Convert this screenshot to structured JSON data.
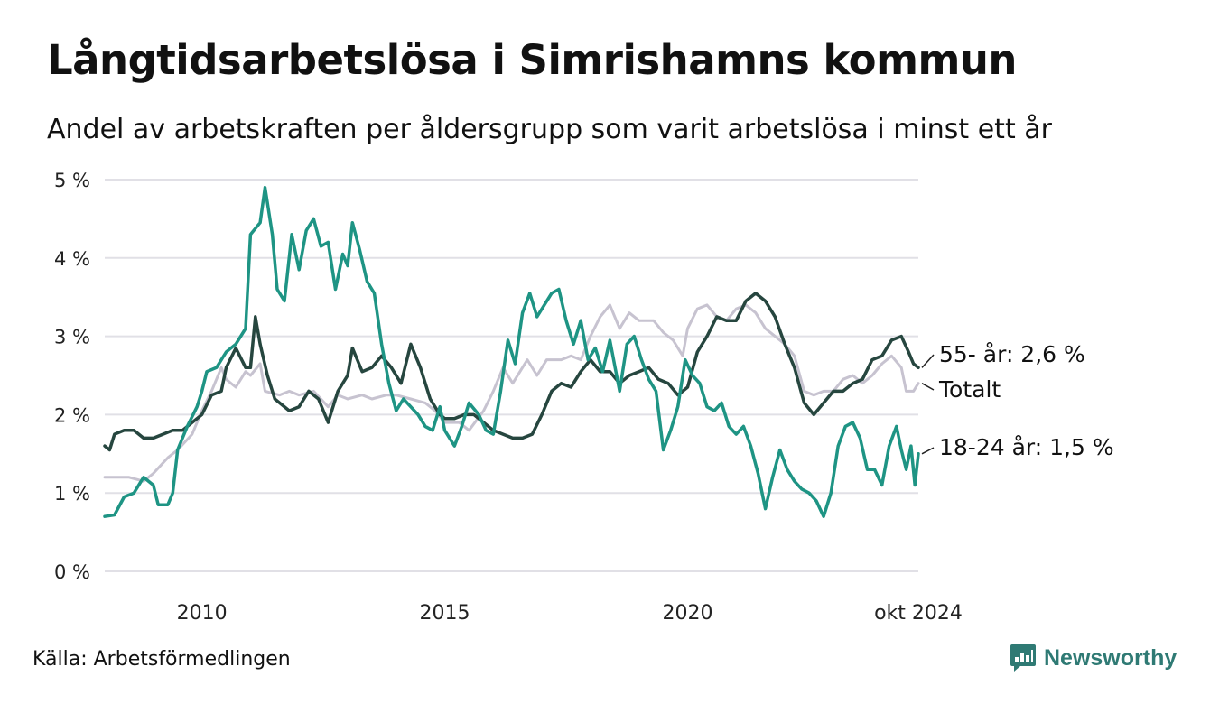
{
  "header": {
    "title": "Långtidsarbetslösa i Simrishamns kommun",
    "subtitle": "Andel av arbetskraften per åldersgrupp som varit arbetslösa i minst ett år"
  },
  "footer": {
    "source": "Källa: Arbetsförmedlingen",
    "brand": "Newsworthy"
  },
  "colors": {
    "youth": "#1e9484",
    "senior": "#26463f",
    "total": "#c7c3d0",
    "grid": "#e1e0e6",
    "brand": "#2f7a74"
  },
  "chart_data": {
    "type": "line",
    "title": "Långtidsarbetslösa i Simrishamns kommun",
    "subtitle": "Andel av arbetskraften per åldersgrupp som varit arbetslösa i minst ett år",
    "x_ticks": [
      {
        "x": 2010,
        "label": "2010"
      },
      {
        "x": 2015,
        "label": "2015"
      },
      {
        "x": 2020,
        "label": "2020"
      },
      {
        "x": 2024.75,
        "label": "okt 2024"
      }
    ],
    "y_ticks": [
      {
        "y": 0,
        "label": "0 %"
      },
      {
        "y": 1,
        "label": "1 %"
      },
      {
        "y": 2,
        "label": "2 %"
      },
      {
        "y": 3,
        "label": "3 %"
      },
      {
        "y": 4,
        "label": "4 %"
      },
      {
        "y": 5,
        "label": "5 %"
      }
    ],
    "xlim": [
      2008.0,
      2024.75
    ],
    "ylim": [
      0,
      5
    ],
    "grid": true,
    "series": [
      {
        "name": "Totalt",
        "end_label": "Totalt",
        "color": "#c7c3d0",
        "points": [
          [
            2008.0,
            1.2
          ],
          [
            2008.5,
            1.2
          ],
          [
            2008.8,
            1.15
          ],
          [
            2009.0,
            1.25
          ],
          [
            2009.3,
            1.45
          ],
          [
            2009.5,
            1.55
          ],
          [
            2009.8,
            1.75
          ],
          [
            2010.0,
            2.05
          ],
          [
            2010.2,
            2.3
          ],
          [
            2010.4,
            2.6
          ],
          [
            2010.5,
            2.45
          ],
          [
            2010.7,
            2.35
          ],
          [
            2010.9,
            2.55
          ],
          [
            2011.0,
            2.5
          ],
          [
            2011.2,
            2.65
          ],
          [
            2011.3,
            2.3
          ],
          [
            2011.6,
            2.25
          ],
          [
            2011.8,
            2.3
          ],
          [
            2012.0,
            2.25
          ],
          [
            2012.3,
            2.3
          ],
          [
            2012.6,
            2.1
          ],
          [
            2012.8,
            2.25
          ],
          [
            2013.0,
            2.2
          ],
          [
            2013.3,
            2.25
          ],
          [
            2013.5,
            2.2
          ],
          [
            2013.8,
            2.25
          ],
          [
            2014.0,
            2.25
          ],
          [
            2014.3,
            2.2
          ],
          [
            2014.6,
            2.15
          ],
          [
            2014.8,
            2.05
          ],
          [
            2015.0,
            1.9
          ],
          [
            2015.3,
            1.9
          ],
          [
            2015.5,
            1.8
          ],
          [
            2015.8,
            2.05
          ],
          [
            2016.0,
            2.3
          ],
          [
            2016.2,
            2.6
          ],
          [
            2016.4,
            2.4
          ],
          [
            2016.7,
            2.7
          ],
          [
            2016.9,
            2.5
          ],
          [
            2017.1,
            2.7
          ],
          [
            2017.4,
            2.7
          ],
          [
            2017.6,
            2.75
          ],
          [
            2017.8,
            2.7
          ],
          [
            2018.0,
            3.0
          ],
          [
            2018.2,
            3.25
          ],
          [
            2018.4,
            3.4
          ],
          [
            2018.6,
            3.1
          ],
          [
            2018.8,
            3.3
          ],
          [
            2019.0,
            3.2
          ],
          [
            2019.3,
            3.2
          ],
          [
            2019.5,
            3.05
          ],
          [
            2019.7,
            2.95
          ],
          [
            2019.9,
            2.75
          ],
          [
            2020.0,
            3.1
          ],
          [
            2020.2,
            3.35
          ],
          [
            2020.4,
            3.4
          ],
          [
            2020.6,
            3.25
          ],
          [
            2020.8,
            3.2
          ],
          [
            2021.0,
            3.35
          ],
          [
            2021.2,
            3.4
          ],
          [
            2021.4,
            3.3
          ],
          [
            2021.6,
            3.1
          ],
          [
            2021.8,
            3.0
          ],
          [
            2022.0,
            2.9
          ],
          [
            2022.2,
            2.75
          ],
          [
            2022.4,
            2.3
          ],
          [
            2022.6,
            2.25
          ],
          [
            2022.8,
            2.3
          ],
          [
            2023.0,
            2.3
          ],
          [
            2023.2,
            2.45
          ],
          [
            2023.4,
            2.5
          ],
          [
            2023.6,
            2.4
          ],
          [
            2023.8,
            2.5
          ],
          [
            2024.0,
            2.65
          ],
          [
            2024.2,
            2.75
          ],
          [
            2024.4,
            2.6
          ],
          [
            2024.5,
            2.3
          ],
          [
            2024.65,
            2.3
          ],
          [
            2024.75,
            2.4
          ]
        ]
      },
      {
        "name": "55- år",
        "end_label": "55- år: 2,6 %",
        "color": "#26463f",
        "points": [
          [
            2008.0,
            1.6
          ],
          [
            2008.1,
            1.55
          ],
          [
            2008.2,
            1.75
          ],
          [
            2008.4,
            1.8
          ],
          [
            2008.6,
            1.8
          ],
          [
            2008.8,
            1.7
          ],
          [
            2009.0,
            1.7
          ],
          [
            2009.2,
            1.75
          ],
          [
            2009.4,
            1.8
          ],
          [
            2009.6,
            1.8
          ],
          [
            2009.8,
            1.9
          ],
          [
            2010.0,
            2.0
          ],
          [
            2010.2,
            2.25
          ],
          [
            2010.4,
            2.3
          ],
          [
            2010.5,
            2.6
          ],
          [
            2010.7,
            2.85
          ],
          [
            2010.9,
            2.6
          ],
          [
            2011.0,
            2.6
          ],
          [
            2011.1,
            3.25
          ],
          [
            2011.2,
            2.9
          ],
          [
            2011.35,
            2.5
          ],
          [
            2011.5,
            2.2
          ],
          [
            2011.8,
            2.05
          ],
          [
            2012.0,
            2.1
          ],
          [
            2012.2,
            2.3
          ],
          [
            2012.4,
            2.2
          ],
          [
            2012.6,
            1.9
          ],
          [
            2012.8,
            2.3
          ],
          [
            2013.0,
            2.5
          ],
          [
            2013.1,
            2.85
          ],
          [
            2013.3,
            2.55
          ],
          [
            2013.5,
            2.6
          ],
          [
            2013.7,
            2.75
          ],
          [
            2013.9,
            2.6
          ],
          [
            2014.1,
            2.4
          ],
          [
            2014.3,
            2.9
          ],
          [
            2014.5,
            2.6
          ],
          [
            2014.7,
            2.2
          ],
          [
            2014.9,
            2.0
          ],
          [
            2015.0,
            1.95
          ],
          [
            2015.2,
            1.95
          ],
          [
            2015.4,
            2.0
          ],
          [
            2015.6,
            2.0
          ],
          [
            2015.8,
            1.9
          ],
          [
            2016.0,
            1.8
          ],
          [
            2016.2,
            1.75
          ],
          [
            2016.4,
            1.7
          ],
          [
            2016.6,
            1.7
          ],
          [
            2016.8,
            1.75
          ],
          [
            2017.0,
            2.0
          ],
          [
            2017.2,
            2.3
          ],
          [
            2017.4,
            2.4
          ],
          [
            2017.6,
            2.35
          ],
          [
            2017.8,
            2.55
          ],
          [
            2018.0,
            2.7
          ],
          [
            2018.2,
            2.55
          ],
          [
            2018.4,
            2.55
          ],
          [
            2018.6,
            2.4
          ],
          [
            2018.8,
            2.5
          ],
          [
            2019.0,
            2.55
          ],
          [
            2019.2,
            2.6
          ],
          [
            2019.4,
            2.45
          ],
          [
            2019.6,
            2.4
          ],
          [
            2019.8,
            2.25
          ],
          [
            2020.0,
            2.35
          ],
          [
            2020.2,
            2.8
          ],
          [
            2020.4,
            3.0
          ],
          [
            2020.6,
            3.25
          ],
          [
            2020.8,
            3.2
          ],
          [
            2021.0,
            3.2
          ],
          [
            2021.2,
            3.45
          ],
          [
            2021.4,
            3.55
          ],
          [
            2021.6,
            3.45
          ],
          [
            2021.8,
            3.25
          ],
          [
            2022.0,
            2.9
          ],
          [
            2022.2,
            2.6
          ],
          [
            2022.4,
            2.15
          ],
          [
            2022.6,
            2.0
          ],
          [
            2022.8,
            2.15
          ],
          [
            2023.0,
            2.3
          ],
          [
            2023.2,
            2.3
          ],
          [
            2023.4,
            2.4
          ],
          [
            2023.6,
            2.45
          ],
          [
            2023.8,
            2.7
          ],
          [
            2024.0,
            2.75
          ],
          [
            2024.2,
            2.95
          ],
          [
            2024.4,
            3.0
          ],
          [
            2024.55,
            2.8
          ],
          [
            2024.65,
            2.65
          ],
          [
            2024.75,
            2.6
          ]
        ]
      },
      {
        "name": "18-24 år",
        "end_label": "18-24 år: 1,5 %",
        "color": "#1e9484",
        "points": [
          [
            2008.0,
            0.7
          ],
          [
            2008.2,
            0.72
          ],
          [
            2008.4,
            0.95
          ],
          [
            2008.6,
            1.0
          ],
          [
            2008.8,
            1.2
          ],
          [
            2009.0,
            1.1
          ],
          [
            2009.1,
            0.85
          ],
          [
            2009.3,
            0.85
          ],
          [
            2009.4,
            1.0
          ],
          [
            2009.5,
            1.55
          ],
          [
            2009.7,
            1.85
          ],
          [
            2009.9,
            2.1
          ],
          [
            2010.0,
            2.3
          ],
          [
            2010.1,
            2.55
          ],
          [
            2010.3,
            2.6
          ],
          [
            2010.5,
            2.8
          ],
          [
            2010.7,
            2.9
          ],
          [
            2010.9,
            3.1
          ],
          [
            2011.0,
            4.3
          ],
          [
            2011.2,
            4.45
          ],
          [
            2011.3,
            4.9
          ],
          [
            2011.45,
            4.3
          ],
          [
            2011.55,
            3.6
          ],
          [
            2011.7,
            3.45
          ],
          [
            2011.85,
            4.3
          ],
          [
            2012.0,
            3.85
          ],
          [
            2012.15,
            4.35
          ],
          [
            2012.3,
            4.5
          ],
          [
            2012.45,
            4.15
          ],
          [
            2012.6,
            4.2
          ],
          [
            2012.75,
            3.6
          ],
          [
            2012.9,
            4.05
          ],
          [
            2013.0,
            3.9
          ],
          [
            2013.1,
            4.45
          ],
          [
            2013.25,
            4.1
          ],
          [
            2013.4,
            3.7
          ],
          [
            2013.55,
            3.55
          ],
          [
            2013.7,
            2.9
          ],
          [
            2013.85,
            2.4
          ],
          [
            2014.0,
            2.05
          ],
          [
            2014.15,
            2.2
          ],
          [
            2014.3,
            2.1
          ],
          [
            2014.45,
            2.0
          ],
          [
            2014.6,
            1.85
          ],
          [
            2014.75,
            1.8
          ],
          [
            2014.9,
            2.1
          ],
          [
            2015.0,
            1.8
          ],
          [
            2015.2,
            1.6
          ],
          [
            2015.35,
            1.85
          ],
          [
            2015.5,
            2.15
          ],
          [
            2015.7,
            2.0
          ],
          [
            2015.85,
            1.8
          ],
          [
            2016.0,
            1.75
          ],
          [
            2016.15,
            2.3
          ],
          [
            2016.3,
            2.95
          ],
          [
            2016.45,
            2.65
          ],
          [
            2016.6,
            3.3
          ],
          [
            2016.75,
            3.55
          ],
          [
            2016.9,
            3.25
          ],
          [
            2017.05,
            3.4
          ],
          [
            2017.2,
            3.55
          ],
          [
            2017.35,
            3.6
          ],
          [
            2017.5,
            3.2
          ],
          [
            2017.65,
            2.9
          ],
          [
            2017.8,
            3.2
          ],
          [
            2017.95,
            2.7
          ],
          [
            2018.1,
            2.85
          ],
          [
            2018.25,
            2.55
          ],
          [
            2018.4,
            2.95
          ],
          [
            2018.6,
            2.3
          ],
          [
            2018.75,
            2.9
          ],
          [
            2018.9,
            3.0
          ],
          [
            2019.05,
            2.7
          ],
          [
            2019.2,
            2.45
          ],
          [
            2019.35,
            2.3
          ],
          [
            2019.5,
            1.55
          ],
          [
            2019.65,
            1.8
          ],
          [
            2019.8,
            2.1
          ],
          [
            2019.95,
            2.7
          ],
          [
            2020.1,
            2.5
          ],
          [
            2020.25,
            2.4
          ],
          [
            2020.4,
            2.1
          ],
          [
            2020.55,
            2.05
          ],
          [
            2020.7,
            2.15
          ],
          [
            2020.85,
            1.85
          ],
          [
            2021.0,
            1.75
          ],
          [
            2021.15,
            1.85
          ],
          [
            2021.3,
            1.6
          ],
          [
            2021.45,
            1.25
          ],
          [
            2021.6,
            0.8
          ],
          [
            2021.75,
            1.2
          ],
          [
            2021.9,
            1.55
          ],
          [
            2022.05,
            1.3
          ],
          [
            2022.2,
            1.15
          ],
          [
            2022.35,
            1.05
          ],
          [
            2022.5,
            1.0
          ],
          [
            2022.65,
            0.9
          ],
          [
            2022.8,
            0.7
          ],
          [
            2022.95,
            1.0
          ],
          [
            2023.1,
            1.6
          ],
          [
            2023.25,
            1.85
          ],
          [
            2023.4,
            1.9
          ],
          [
            2023.55,
            1.7
          ],
          [
            2023.7,
            1.3
          ],
          [
            2023.85,
            1.3
          ],
          [
            2024.0,
            1.1
          ],
          [
            2024.15,
            1.6
          ],
          [
            2024.3,
            1.85
          ],
          [
            2024.4,
            1.55
          ],
          [
            2024.5,
            1.3
          ],
          [
            2024.6,
            1.6
          ],
          [
            2024.68,
            1.1
          ],
          [
            2024.75,
            1.5
          ]
        ]
      }
    ]
  }
}
